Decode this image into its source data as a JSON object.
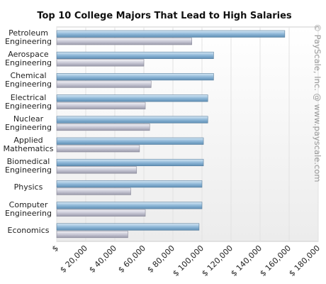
{
  "chart_data": {
    "type": "hbar",
    "title": "Top 10 College Majors That Lead to High Salaries",
    "watermark": "© PayScale, Inc. @ www.payscale.com",
    "categories": [
      "Petroleum Engineering",
      "Aerospace Engineering",
      "Chemical Engineering",
      "Electrical Engineering",
      "Nuclear Engineering",
      "Applied Mathematics",
      "Biomedical Engineering",
      "Physics",
      "Computer Engineering",
      "Economics"
    ],
    "series": [
      {
        "color": "#8fb8d8",
        "values": [
          157000,
          108000,
          108000,
          104000,
          104000,
          101000,
          101000,
          100000,
          100000,
          98000
        ]
      },
      {
        "color": "#c9c9d6",
        "values": [
          93000,
          60000,
          65000,
          61000,
          64000,
          57000,
          55000,
          51000,
          61000,
          49000
        ]
      }
    ],
    "xlim": [
      0,
      180000
    ],
    "xticks": [
      {
        "value": 0,
        "label": "$"
      },
      {
        "value": 20000,
        "label": "$ 20,000"
      },
      {
        "value": 40000,
        "label": "$ 40,000"
      },
      {
        "value": 60000,
        "label": "$ 60,000"
      },
      {
        "value": 80000,
        "label": "$ 80,000"
      },
      {
        "value": 100000,
        "label": "$ 100,000"
      },
      {
        "value": 120000,
        "label": "$ 120,000"
      },
      {
        "value": 140000,
        "label": "$ 140,000"
      },
      {
        "value": 160000,
        "label": "$ 160,000"
      },
      {
        "value": 180000,
        "label": "$ 180,000"
      }
    ],
    "grid": true
  }
}
